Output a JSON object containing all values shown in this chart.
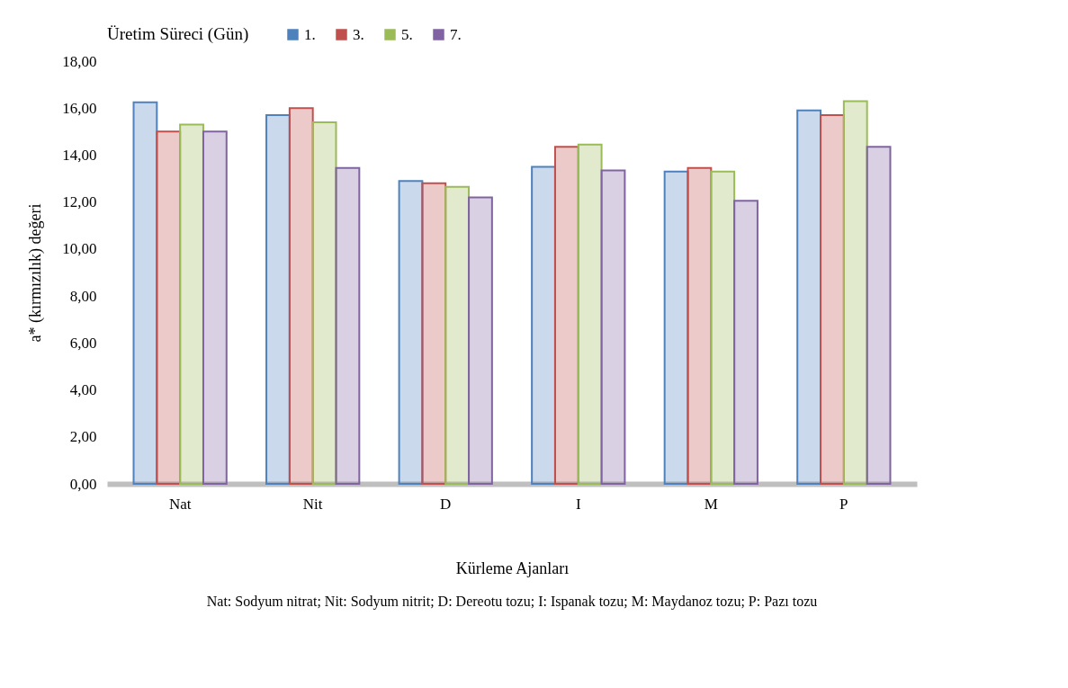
{
  "chart_data": {
    "type": "bar",
    "xlabel": "Kürleme  Ajanları",
    "ylabel": "a* (kırmızılık) değeri",
    "legend_title": "Üretim Süreci (Gün)",
    "legend": "top",
    "categories": [
      "Nat",
      "Nit",
      "D",
      "I",
      "M",
      "P"
    ],
    "series": [
      {
        "name": "1.",
        "color": "#4f81bd",
        "values": [
          16.25,
          15.7,
          12.9,
          13.5,
          13.3,
          15.9
        ]
      },
      {
        "name": "3.",
        "color": "#c0504d",
        "values": [
          15.0,
          16.0,
          12.8,
          14.35,
          13.45,
          15.7
        ]
      },
      {
        "name": "5.",
        "color": "#9bbb59",
        "values": [
          15.3,
          15.4,
          12.65,
          14.45,
          13.3,
          16.3
        ]
      },
      {
        "name": "7.",
        "color": "#8064a2",
        "values": [
          15.0,
          13.45,
          12.2,
          13.35,
          12.05,
          14.35
        ]
      }
    ],
    "ylim": [
      0,
      18
    ],
    "yticks": [
      {
        "value": 0,
        "label": "0,00"
      },
      {
        "value": 2,
        "label": "2,00"
      },
      {
        "value": 4,
        "label": "4,00"
      },
      {
        "value": 6,
        "label": "6,00"
      },
      {
        "value": 8,
        "label": "8,00"
      },
      {
        "value": 10,
        "label": "10,00"
      },
      {
        "value": 12,
        "label": "12,00"
      },
      {
        "value": 14,
        "label": "14,00"
      },
      {
        "value": 16,
        "label": "16,00"
      },
      {
        "value": 18,
        "label": "18,00"
      }
    ],
    "grid": false,
    "annotations": [
      "Nat:  Sodyum nitrat;  Nit:  Sodyum nitrit;  D: Dereotu tozu; I: Ispanak tozu; M:  Maydanoz tozu; P: Pazı tozu"
    ]
  }
}
